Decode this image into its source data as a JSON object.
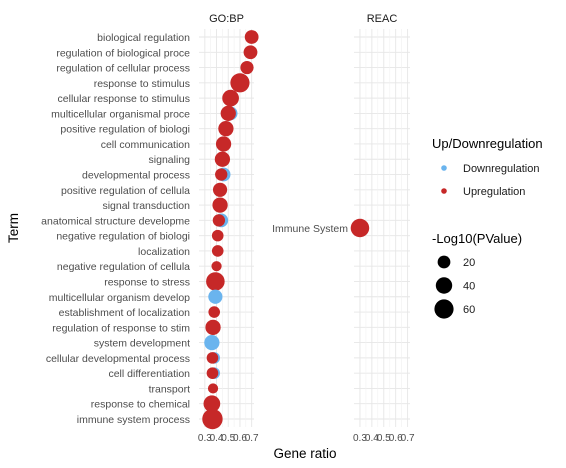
{
  "chart_data": {
    "type": "scatter",
    "xlabel": "Gene ratio",
    "ylabel": "Term",
    "xticks": [
      "0.3",
      "0.4",
      "0.5",
      "0.6",
      "0.7"
    ],
    "xlim": [
      0.25,
      0.72
    ],
    "colors": {
      "down": "#6ab4ee",
      "up": "#c62828",
      "grid": "#e6e6e6"
    },
    "legend_color": {
      "title": "Up/Downregulation",
      "items": [
        {
          "label": "Downregulation",
          "color": "#6ab4ee"
        },
        {
          "label": "Upregulation",
          "color": "#c62828"
        }
      ]
    },
    "legend_size": {
      "title": "-Log10(PValue)",
      "items": [
        {
          "label": "20",
          "value": 20
        },
        {
          "label": "40",
          "value": 40
        },
        {
          "label": "60",
          "value": 60
        }
      ]
    },
    "facets": [
      {
        "name": "GO:BP",
        "terms": [
          "biological regulation",
          "regulation of biological proce",
          "regulation of cellular process",
          "response to stimulus",
          "cellular response to stimulus",
          "multicellular organismal proce",
          "positive regulation of biologi",
          "cell communication",
          "signaling",
          "developmental process",
          "positive regulation of cellula",
          "signal transduction",
          "anatomical structure developme",
          "negative regulation of biologi",
          "localization",
          "negative regulation of cellula",
          "response to stress",
          "multicellular organism develop",
          "establishment of localization",
          "regulation of response to stim",
          "system development",
          "cellular developmental process",
          "cell differentiation",
          "transport",
          "response to chemical",
          "immune system process"
        ],
        "points": [
          {
            "term": "biological regulation",
            "x": 0.7,
            "size": 25,
            "dir": "up"
          },
          {
            "term": "regulation of biological proce",
            "x": 0.69,
            "size": 25,
            "dir": "up"
          },
          {
            "term": "regulation of cellular process",
            "x": 0.66,
            "size": 22,
            "dir": "up"
          },
          {
            "term": "response to stimulus",
            "x": 0.6,
            "size": 60,
            "dir": "up"
          },
          {
            "term": "cellular response to stimulus",
            "x": 0.52,
            "size": 42,
            "dir": "up"
          },
          {
            "term": "multicellular organismal proce",
            "x": 0.52,
            "size": 25,
            "dir": "down"
          },
          {
            "term": "multicellular organismal proce",
            "x": 0.5,
            "size": 33,
            "dir": "up"
          },
          {
            "term": "positive regulation of biologi",
            "x": 0.48,
            "size": 33,
            "dir": "up"
          },
          {
            "term": "cell communication",
            "x": 0.46,
            "size": 33,
            "dir": "up"
          },
          {
            "term": "signaling",
            "x": 0.45,
            "size": 33,
            "dir": "up"
          },
          {
            "term": "developmental process",
            "x": 0.46,
            "size": 25,
            "dir": "down"
          },
          {
            "term": "developmental process",
            "x": 0.44,
            "size": 18,
            "dir": "up"
          },
          {
            "term": "positive regulation of cellula",
            "x": 0.43,
            "size": 27,
            "dir": "up"
          },
          {
            "term": "signal transduction",
            "x": 0.43,
            "size": 33,
            "dir": "up"
          },
          {
            "term": "anatomical structure developme",
            "x": 0.44,
            "size": 25,
            "dir": "down"
          },
          {
            "term": "anatomical structure developme",
            "x": 0.42,
            "size": 18,
            "dir": "up"
          },
          {
            "term": "negative regulation of biologi",
            "x": 0.41,
            "size": 15,
            "dir": "up"
          },
          {
            "term": "localization",
            "x": 0.41,
            "size": 15,
            "dir": "up"
          },
          {
            "term": "negative regulation of cellula",
            "x": 0.4,
            "size": 10,
            "dir": "up"
          },
          {
            "term": "response to stress",
            "x": 0.39,
            "size": 55,
            "dir": "up"
          },
          {
            "term": "multicellular organism develop",
            "x": 0.39,
            "size": 27,
            "dir": "down"
          },
          {
            "term": "establishment of localization",
            "x": 0.38,
            "size": 15,
            "dir": "up"
          },
          {
            "term": "regulation of response to stim",
            "x": 0.37,
            "size": 33,
            "dir": "up"
          },
          {
            "term": "system development",
            "x": 0.36,
            "size": 33,
            "dir": "down"
          },
          {
            "term": "cellular developmental process",
            "x": 0.38,
            "size": 15,
            "dir": "down"
          },
          {
            "term": "cellular developmental process",
            "x": 0.365,
            "size": 15,
            "dir": "up"
          },
          {
            "term": "cell differentiation",
            "x": 0.38,
            "size": 15,
            "dir": "down"
          },
          {
            "term": "cell differentiation",
            "x": 0.365,
            "size": 15,
            "dir": "up"
          },
          {
            "term": "transport",
            "x": 0.37,
            "size": 10,
            "dir": "up"
          },
          {
            "term": "response to chemical",
            "x": 0.36,
            "size": 42,
            "dir": "up"
          },
          {
            "term": "immune system process",
            "x": 0.365,
            "size": 70,
            "dir": "up"
          }
        ]
      },
      {
        "name": "REAC",
        "terms": [
          "Immune System"
        ],
        "points": [
          {
            "term": "Immune System",
            "x": 0.3,
            "size": 55,
            "dir": "up"
          }
        ]
      }
    ]
  }
}
